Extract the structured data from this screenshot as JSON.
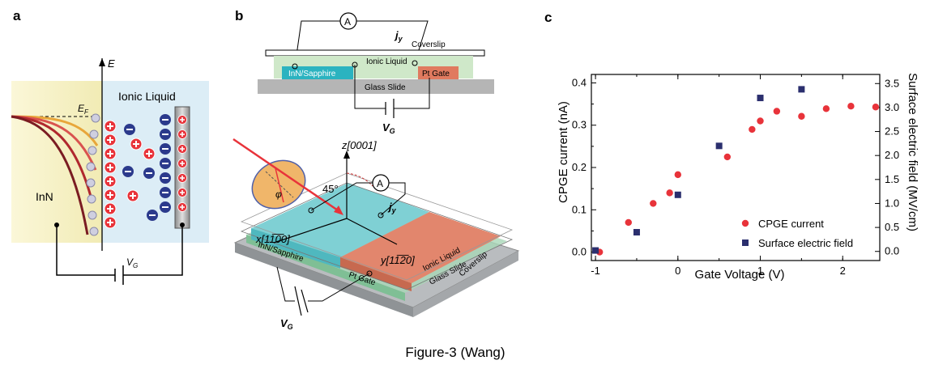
{
  "figure": {
    "caption": "Figure-3 (Wang)",
    "panel_labels": [
      "a",
      "b",
      "c"
    ]
  },
  "panel_a": {
    "energy_label": "E",
    "fermi_label": "E",
    "fermi_sub": "F",
    "ionic_liquid_label": "Ionic Liquid",
    "inn_label": "InN",
    "gate_label": "V",
    "gate_sub": "G",
    "colors": {
      "inn_bg": "#f7f2c6",
      "ionic_bg": "#dcedf6",
      "plus": "#e8333a",
      "minus": "#2b3a8c"
    }
  },
  "panel_b": {
    "ammeter_symbol": "A",
    "current_label": "j",
    "current_sub": "y",
    "coverslip_label": "Coverslip",
    "ionic_liquid_label": "Ionic Liquid",
    "inn_sapphire_label": "InN/Sapphire",
    "pt_gate_label": "Pt Gate",
    "glass_slide_label": "Glass Slide",
    "gate_label": "V",
    "gate_sub": "G",
    "z_axis_label": "z[0001]",
    "x_axis_label": "x[11̅0̅0]",
    "y_axis_label": "y[11̅2̅0]",
    "angle_label": "45°",
    "phi_label": "φ",
    "iso_inn_label": "InN/Sapphire",
    "iso_ionic_label": "Ionic Liquid",
    "iso_glass_label": "Glass Slide",
    "iso_coverslip_label": "Coverslip",
    "iso_pt_label": "Pt Gate"
  },
  "chart_data": {
    "type": "scatter",
    "xlabel": "Gate Voltage (V)",
    "ylabel": "CPGE current (nA)",
    "y2label": "Surface electric field  (MV/cm)",
    "xlim": [
      -1.05,
      2.45
    ],
    "ylim": [
      -0.02,
      0.42
    ],
    "y2lim": [
      -0.19,
      3.69
    ],
    "xticks": [
      "-1",
      "0",
      "1",
      "2"
    ],
    "xtick_values": [
      -1,
      0,
      1,
      2
    ],
    "yticks": [
      "0.0",
      "0.1",
      "0.2",
      "0.3",
      "0.4"
    ],
    "ytick_values": [
      0,
      0.1,
      0.2,
      0.3,
      0.4
    ],
    "y2ticks": [
      "0.0",
      "0.5",
      "1.0",
      "1.5",
      "2.0",
      "2.5",
      "3.0",
      "3.5"
    ],
    "y2tick_values": [
      0,
      0.5,
      1,
      1.5,
      2,
      2.5,
      3,
      3.5
    ],
    "legend_position": "bottom-right",
    "series": [
      {
        "name": "CPGE current",
        "axis": "left",
        "marker": "circle",
        "color": "#e8333a",
        "x": [
          -0.95,
          -0.6,
          -0.3,
          -0.1,
          0.0,
          0.6,
          0.9,
          1.0,
          1.2,
          1.5,
          1.8,
          2.1,
          2.4
        ],
        "y": [
          0.0,
          0.07,
          0.115,
          0.14,
          0.183,
          0.225,
          0.29,
          0.31,
          0.333,
          0.321,
          0.339,
          0.345,
          0.343
        ]
      },
      {
        "name": "Surface electric field",
        "axis": "right",
        "marker": "square",
        "color": "#2b2f6e",
        "x": [
          -1.0,
          -0.5,
          0.0,
          0.5,
          1.0,
          1.5
        ],
        "y": [
          0.02,
          0.4,
          1.18,
          2.2,
          3.2,
          3.38
        ]
      }
    ]
  }
}
